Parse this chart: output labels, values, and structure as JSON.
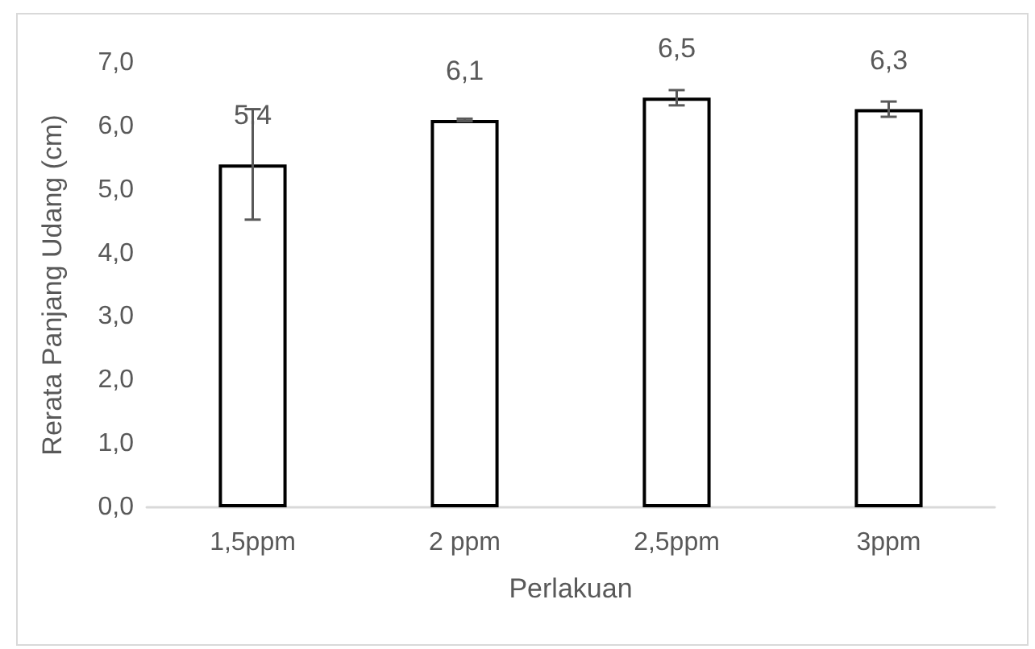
{
  "chart_data": {
    "type": "bar",
    "xlabel": "Perlakuan",
    "ylabel": "Rerata Panjang Udang (cm)",
    "categories": [
      "1,5ppm",
      "2 ppm",
      "2,5ppm",
      "3ppm"
    ],
    "values": [
      5.4,
      6.1,
      6.45,
      6.27
    ],
    "value_labels": [
      "5,4",
      "6,1",
      "6,5",
      "6,3"
    ],
    "errors": [
      0.87,
      0.02,
      0.12,
      0.12
    ],
    "color": "#ffffff",
    "ylim": [
      0,
      7
    ],
    "yticks": [
      {
        "value": 0,
        "label": "0,0"
      },
      {
        "value": 1,
        "label": "1,0"
      },
      {
        "value": 2,
        "label": "2,0"
      },
      {
        "value": 3,
        "label": "3,0"
      },
      {
        "value": 4,
        "label": "4,0"
      },
      {
        "value": 5,
        "label": "5,0"
      },
      {
        "value": 6,
        "label": "6,0"
      },
      {
        "value": 7,
        "label": "7,0"
      }
    ],
    "grid": false
  }
}
